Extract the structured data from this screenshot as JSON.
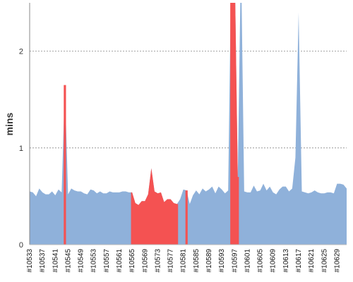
{
  "chart_data": {
    "type": "area",
    "ylabel": "mins",
    "ylim": [
      0,
      2.5
    ],
    "y_ticks": [
      0,
      1,
      2
    ],
    "y_tick_labels": [
      "0",
      "1",
      "2"
    ],
    "grid": "horizontal dashed at y ticks",
    "colors": {
      "fill": "#8fb1da",
      "highlight": "#f45252",
      "grid": "#888888"
    },
    "x_range": [
      10533,
      10632
    ],
    "x_tick_labels": [
      "#10533",
      "#10537",
      "#10541",
      "#10545",
      "#10549",
      "#10553",
      "#10557",
      "#10561",
      "#10565",
      "#10569",
      "#10573",
      "#10577",
      "#10581",
      "#10585",
      "#10589",
      "#10593",
      "#10597",
      "#10601",
      "#10605",
      "#10609",
      "#10613",
      "#10617",
      "#10621",
      "#10625",
      "#10629"
    ],
    "x_tick_values": [
      10533,
      10537,
      10541,
      10545,
      10549,
      10553,
      10557,
      10561,
      10565,
      10569,
      10573,
      10577,
      10581,
      10585,
      10589,
      10593,
      10597,
      10601,
      10605,
      10609,
      10613,
      10617,
      10621,
      10625,
      10629
    ],
    "series": [
      {
        "x": [
          10533,
          10534,
          10535,
          10536,
          10537,
          10538,
          10539,
          10540,
          10541,
          10542,
          10543,
          10544,
          10545,
          10546,
          10547,
          10548,
          10549,
          10550,
          10551,
          10552,
          10553,
          10554,
          10555,
          10556,
          10557,
          10558,
          10559,
          10560,
          10561,
          10562,
          10563,
          10564,
          10565,
          10566,
          10567,
          10568,
          10569,
          10570,
          10571,
          10572,
          10573,
          10574,
          10575,
          10576,
          10577,
          10578,
          10579,
          10580,
          10581,
          10582,
          10583,
          10584,
          10585,
          10586,
          10587,
          10588,
          10589,
          10590,
          10591,
          10592,
          10593,
          10594,
          10595,
          10596,
          10597,
          10598,
          10599,
          10600,
          10601,
          10602,
          10603,
          10604,
          10605,
          10606,
          10607,
          10608,
          10609,
          10610,
          10611,
          10612,
          10613,
          10614,
          10615,
          10616,
          10617,
          10618,
          10619,
          10620,
          10621,
          10622,
          10623,
          10624,
          10625,
          10626,
          10627,
          10628,
          10629,
          10630,
          10631,
          10632
        ],
        "values": [
          0.55,
          0.54,
          0.5,
          0.58,
          0.54,
          0.52,
          0.52,
          0.55,
          0.51,
          0.57,
          0.54,
          1.65,
          0.52,
          0.58,
          0.56,
          0.55,
          0.55,
          0.53,
          0.52,
          0.57,
          0.56,
          0.53,
          0.55,
          0.53,
          0.53,
          0.55,
          0.54,
          0.54,
          0.54,
          0.55,
          0.55,
          0.54,
          0.54,
          0.43,
          0.41,
          0.45,
          0.45,
          0.52,
          0.79,
          0.55,
          0.53,
          0.54,
          0.44,
          0.47,
          0.47,
          0.43,
          0.42,
          0.47,
          0.57,
          0.56,
          0.42,
          0.51,
          0.56,
          0.52,
          0.58,
          0.55,
          0.57,
          0.6,
          0.53,
          0.6,
          0.57,
          0.53,
          0.56,
          3.0,
          3.0,
          0.7,
          3.0,
          0.55,
          0.54,
          0.54,
          0.61,
          0.55,
          0.56,
          0.63,
          0.56,
          0.6,
          0.54,
          0.52,
          0.57,
          0.6,
          0.6,
          0.55,
          0.58,
          0.9,
          2.4,
          0.55,
          0.54,
          0.53,
          0.54,
          0.56,
          0.54,
          0.53,
          0.53,
          0.54,
          0.54,
          0.53,
          0.63,
          0.63,
          0.62,
          0.58
        ]
      }
    ],
    "highlighted_ranges": [
      {
        "x_start": 10544,
        "x_end": 10544
      },
      {
        "x_start": 10565,
        "x_end": 10579
      },
      {
        "x_start": 10582,
        "x_end": 10582
      },
      {
        "x_start": 10596,
        "x_end": 10598
      }
    ]
  }
}
